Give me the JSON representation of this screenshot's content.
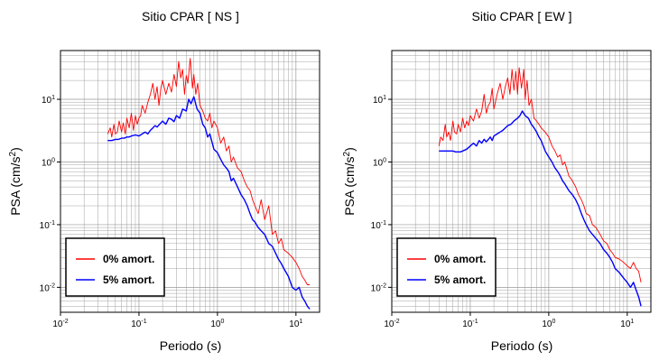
{
  "chart_data": [
    {
      "type": "line",
      "title": "Sitio CPAR [ NS ]",
      "xlabel": "Periodo (s)",
      "ylabel_base": "PSA (cm/s",
      "ylabel_exp": "2",
      "ylabel_close": ")",
      "x_scale": "log",
      "y_scale": "log",
      "xlim": [
        0.01,
        20
      ],
      "ylim": [
        0.004,
        60
      ],
      "grid": true,
      "legend_position": "bottom-left",
      "x_ticks": [
        {
          "value": 0.01,
          "base": "10",
          "exp": "-2"
        },
        {
          "value": 0.1,
          "base": "10",
          "exp": "-1"
        },
        {
          "value": 1,
          "base": "10",
          "exp": "0"
        },
        {
          "value": 10,
          "base": "10",
          "exp": "1"
        }
      ],
      "y_ticks": [
        {
          "value": 0.01,
          "base": "10",
          "exp": "-2"
        },
        {
          "value": 0.1,
          "base": "10",
          "exp": "-1"
        },
        {
          "value": 1,
          "base": "10",
          "exp": "0"
        },
        {
          "value": 10,
          "base": "10",
          "exp": "1"
        }
      ],
      "series": [
        {
          "name": "0% amort.",
          "color": "#ff0000",
          "x": [
            0.04,
            0.043,
            0.045,
            0.048,
            0.05,
            0.053,
            0.056,
            0.06,
            0.063,
            0.067,
            0.07,
            0.075,
            0.08,
            0.085,
            0.09,
            0.095,
            0.1,
            0.105,
            0.11,
            0.12,
            0.13,
            0.14,
            0.15,
            0.16,
            0.17,
            0.18,
            0.19,
            0.2,
            0.22,
            0.24,
            0.26,
            0.28,
            0.3,
            0.32,
            0.34,
            0.36,
            0.38,
            0.4,
            0.42,
            0.45,
            0.48,
            0.5,
            0.53,
            0.56,
            0.6,
            0.65,
            0.7,
            0.75,
            0.8,
            0.85,
            0.9,
            1.0,
            1.1,
            1.2,
            1.3,
            1.4,
            1.5,
            1.6,
            1.8,
            2.0,
            2.2,
            2.4,
            2.6,
            2.8,
            3.0,
            3.3,
            3.6,
            4.0,
            4.5,
            5.0,
            5.5,
            6.0,
            6.5,
            7.0,
            8.0,
            9.0,
            10,
            11,
            12,
            13,
            14,
            15
          ],
          "y": [
            2.8,
            3.5,
            2.5,
            4.0,
            2.8,
            3.0,
            4.5,
            3.0,
            4.2,
            2.8,
            5.0,
            3.5,
            6.0,
            3.2,
            5.5,
            4.0,
            5.0,
            5.5,
            8.0,
            6.0,
            9.0,
            12,
            18,
            10,
            16,
            8.0,
            15,
            20,
            12,
            18,
            13,
            25,
            16,
            40,
            22,
            30,
            12,
            24,
            18,
            45,
            15,
            25,
            12,
            18,
            8.0,
            6.5,
            5.0,
            4.5,
            6.0,
            3.5,
            4.5,
            3.5,
            2.0,
            2.5,
            1.5,
            1.8,
            1.0,
            1.2,
            0.8,
            0.7,
            0.5,
            0.4,
            0.35,
            0.25,
            0.2,
            0.15,
            0.25,
            0.12,
            0.2,
            0.07,
            0.08,
            0.05,
            0.06,
            0.04,
            0.035,
            0.03,
            0.025,
            0.02,
            0.015,
            0.013,
            0.011,
            0.011
          ]
        },
        {
          "name": "5% amort.",
          "color": "#0000ff",
          "x": [
            0.04,
            0.045,
            0.05,
            0.055,
            0.06,
            0.065,
            0.07,
            0.075,
            0.08,
            0.09,
            0.1,
            0.11,
            0.12,
            0.13,
            0.14,
            0.15,
            0.16,
            0.17,
            0.18,
            0.19,
            0.2,
            0.22,
            0.24,
            0.26,
            0.28,
            0.3,
            0.33,
            0.36,
            0.4,
            0.43,
            0.46,
            0.5,
            0.55,
            0.6,
            0.65,
            0.7,
            0.75,
            0.8,
            0.9,
            1.0,
            1.1,
            1.2,
            1.3,
            1.4,
            1.5,
            1.6,
            1.8,
            2.0,
            2.2,
            2.4,
            2.6,
            2.8,
            3.0,
            3.3,
            3.6,
            4.0,
            4.5,
            5.0,
            5.5,
            6.0,
            6.5,
            7.0,
            8.0,
            9.0,
            10,
            11,
            12,
            13,
            14,
            15
          ],
          "y": [
            2.2,
            2.2,
            2.3,
            2.3,
            2.4,
            2.4,
            2.5,
            2.5,
            2.6,
            2.7,
            2.6,
            2.8,
            3.0,
            2.8,
            3.2,
            3.5,
            3.8,
            3.6,
            3.9,
            4.2,
            4.5,
            4.0,
            5.0,
            4.8,
            4.4,
            5.5,
            5.0,
            7.0,
            6.5,
            10,
            8.5,
            11,
            7.0,
            6.0,
            4.0,
            3.5,
            2.5,
            2.8,
            1.6,
            1.4,
            1.1,
            0.9,
            0.8,
            0.7,
            0.5,
            0.55,
            0.4,
            0.3,
            0.25,
            0.2,
            0.15,
            0.12,
            0.11,
            0.09,
            0.08,
            0.07,
            0.05,
            0.045,
            0.035,
            0.028,
            0.024,
            0.02,
            0.015,
            0.01,
            0.009,
            0.01,
            0.007,
            0.006,
            0.005,
            0.0045
          ]
        }
      ]
    },
    {
      "type": "line",
      "title": "Sitio CPAR [ EW ]",
      "xlabel": "Periodo (s)",
      "ylabel_base": "PSA (cm/s",
      "ylabel_exp": "2",
      "ylabel_close": ")",
      "x_scale": "log",
      "y_scale": "log",
      "xlim": [
        0.01,
        20
      ],
      "ylim": [
        0.004,
        60
      ],
      "grid": true,
      "legend_position": "bottom-left",
      "x_ticks": [
        {
          "value": 0.01,
          "base": "10",
          "exp": "-2"
        },
        {
          "value": 0.1,
          "base": "10",
          "exp": "-1"
        },
        {
          "value": 1,
          "base": "10",
          "exp": "0"
        },
        {
          "value": 10,
          "base": "10",
          "exp": "1"
        }
      ],
      "y_ticks": [
        {
          "value": 0.01,
          "base": "10",
          "exp": "-2"
        },
        {
          "value": 0.1,
          "base": "10",
          "exp": "-1"
        },
        {
          "value": 1,
          "base": "10",
          "exp": "0"
        },
        {
          "value": 10,
          "base": "10",
          "exp": "1"
        }
      ],
      "series": [
        {
          "name": "0% amort.",
          "color": "#ff0000",
          "x": [
            0.04,
            0.042,
            0.045,
            0.048,
            0.05,
            0.053,
            0.056,
            0.06,
            0.063,
            0.067,
            0.07,
            0.075,
            0.08,
            0.085,
            0.09,
            0.095,
            0.1,
            0.11,
            0.12,
            0.13,
            0.14,
            0.15,
            0.16,
            0.17,
            0.18,
            0.19,
            0.2,
            0.22,
            0.24,
            0.26,
            0.28,
            0.3,
            0.32,
            0.34,
            0.36,
            0.38,
            0.4,
            0.42,
            0.45,
            0.48,
            0.5,
            0.53,
            0.56,
            0.6,
            0.65,
            0.7,
            0.75,
            0.8,
            0.9,
            1.0,
            1.1,
            1.2,
            1.3,
            1.4,
            1.5,
            1.6,
            1.8,
            2.0,
            2.2,
            2.4,
            2.6,
            2.8,
            3.0,
            3.3,
            3.6,
            4.0,
            4.5,
            5.0,
            5.5,
            6.0,
            6.5,
            7.0,
            8.0,
            9.0,
            10,
            11,
            12,
            13,
            14,
            15
          ],
          "y": [
            1.8,
            2.5,
            2.2,
            4.0,
            2.5,
            3.0,
            2.2,
            4.5,
            3.0,
            2.8,
            4.0,
            3.0,
            5.0,
            3.5,
            4.5,
            3.8,
            5.5,
            4.5,
            7.0,
            5.0,
            6.5,
            12,
            6.0,
            8.0,
            9.0,
            15,
            7.0,
            12,
            18,
            10,
            16,
            22,
            12,
            30,
            14,
            28,
            12,
            32,
            15,
            30,
            10,
            20,
            8.0,
            10,
            5.0,
            4.5,
            4.0,
            3.5,
            3.0,
            2.5,
            1.8,
            1.5,
            1.2,
            1.3,
            0.9,
            1.0,
            0.6,
            0.5,
            0.4,
            0.3,
            0.25,
            0.2,
            0.15,
            0.14,
            0.1,
            0.09,
            0.07,
            0.055,
            0.05,
            0.04,
            0.035,
            0.03,
            0.028,
            0.025,
            0.022,
            0.02,
            0.025,
            0.02,
            0.018,
            0.012
          ]
        },
        {
          "name": "5% amort.",
          "color": "#0000ff",
          "x": [
            0.04,
            0.045,
            0.05,
            0.055,
            0.06,
            0.065,
            0.07,
            0.075,
            0.08,
            0.09,
            0.1,
            0.11,
            0.12,
            0.13,
            0.14,
            0.15,
            0.16,
            0.17,
            0.18,
            0.19,
            0.2,
            0.22,
            0.24,
            0.26,
            0.28,
            0.3,
            0.33,
            0.36,
            0.4,
            0.43,
            0.46,
            0.5,
            0.55,
            0.6,
            0.65,
            0.7,
            0.75,
            0.8,
            0.9,
            1.0,
            1.1,
            1.2,
            1.3,
            1.4,
            1.5,
            1.6,
            1.8,
            2.0,
            2.2,
            2.4,
            2.6,
            2.8,
            3.0,
            3.3,
            3.6,
            4.0,
            4.5,
            5.0,
            5.5,
            6.0,
            6.5,
            7.0,
            8.0,
            9.0,
            10,
            11,
            12,
            13,
            14,
            15
          ],
          "y": [
            1.5,
            1.5,
            1.5,
            1.5,
            1.5,
            1.45,
            1.45,
            1.45,
            1.5,
            1.6,
            1.8,
            2.0,
            1.8,
            2.2,
            2.0,
            2.3,
            2.1,
            2.3,
            2.5,
            2.2,
            2.6,
            2.8,
            3.0,
            3.2,
            3.5,
            3.8,
            4.0,
            4.5,
            5.0,
            5.5,
            6.5,
            5.5,
            5.0,
            4.0,
            3.5,
            3.0,
            2.5,
            2.2,
            1.5,
            1.2,
            1.0,
            0.8,
            0.7,
            0.6,
            0.5,
            0.45,
            0.35,
            0.3,
            0.25,
            0.2,
            0.15,
            0.12,
            0.1,
            0.08,
            0.07,
            0.06,
            0.05,
            0.04,
            0.035,
            0.03,
            0.025,
            0.02,
            0.017,
            0.014,
            0.012,
            0.01,
            0.012,
            0.009,
            0.007,
            0.005
          ]
        }
      ]
    }
  ]
}
